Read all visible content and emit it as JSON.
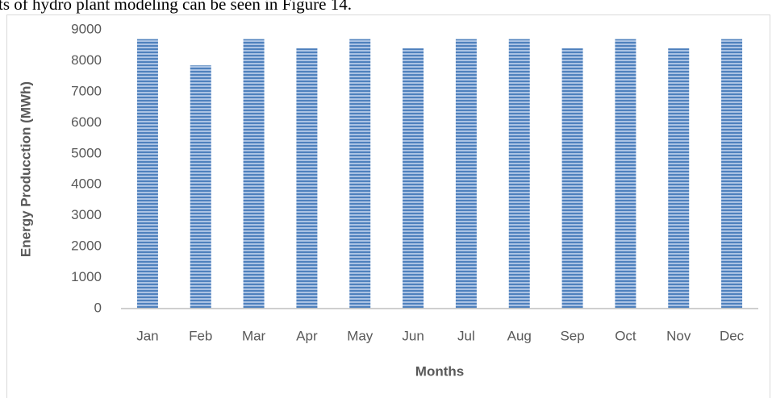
{
  "text_above": "ts of hydro plant modeling can be seen in Figure 14.",
  "chart_data": {
    "type": "bar",
    "categories": [
      "Jan",
      "Feb",
      "Mar",
      "Apr",
      "May",
      "Jun",
      "Jul",
      "Aug",
      "Sep",
      "Oct",
      "Nov",
      "Dec"
    ],
    "values": [
      8700,
      7850,
      8700,
      8400,
      8700,
      8400,
      8700,
      8700,
      8400,
      8700,
      8400,
      8700
    ],
    "color": "#4f81bd",
    "x_label": "Months",
    "y_label": "Energy Producction (MWh)",
    "ylim": [
      0,
      9000
    ],
    "yticks": [
      0,
      1000,
      2000,
      3000,
      4000,
      5000,
      6000,
      7000,
      8000,
      9000
    ],
    "grid": false
  }
}
